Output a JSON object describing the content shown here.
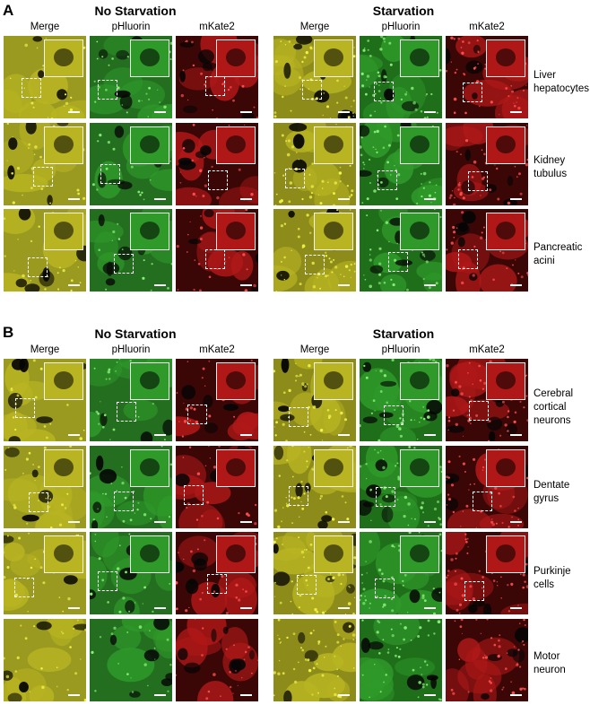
{
  "panels": [
    {
      "letter": "A",
      "left_condition": "No Starvation",
      "right_condition": "Starvation",
      "channels": [
        "Merge",
        "pHluorin",
        "mKate2"
      ],
      "rows": [
        {
          "label": "Liver\nhepatocytes",
          "insets": true
        },
        {
          "label": "Kidney\ntubulus",
          "insets": true
        },
        {
          "label": "Pancreatic\nacini",
          "insets": true
        }
      ]
    },
    {
      "letter": "B",
      "left_condition": "No Starvation",
      "right_condition": "Starvation",
      "channels": [
        "Merge",
        "pHluorin",
        "mKate2"
      ],
      "rows": [
        {
          "label": "Cerebral\ncortical\nneurons",
          "insets": true
        },
        {
          "label": "Dentate\ngyrus",
          "insets": true
        },
        {
          "label": "Purkinje\ncells",
          "insets": true
        },
        {
          "label": "Motor\nneuron",
          "insets": false
        }
      ]
    }
  ],
  "channel_colors": {
    "Merge": "#b8b422",
    "pHluorin": "#2f9a2a",
    "mKate2": "#b01818"
  }
}
